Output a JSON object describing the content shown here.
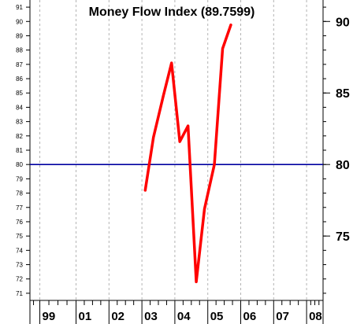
{
  "chart_data": {
    "type": "line",
    "title": "Money Flow Index (89.7599)",
    "ylim": [
      70.5,
      91.5
    ],
    "x_tick_labels": [
      "99",
      "01",
      "02",
      "03",
      "04",
      "05",
      "06",
      "07",
      "08"
    ],
    "x_tick_years": [
      1999.8,
      2000.9,
      2001.9,
      2002.9,
      2003.9,
      2004.9,
      2005.9,
      2006.9,
      2007.9
    ],
    "xlim": [
      1999.5,
      2008.4
    ],
    "left_y_ticks": [
      71,
      72,
      73,
      74,
      75,
      76,
      77,
      78,
      79,
      80,
      81,
      82,
      83,
      84,
      85,
      86,
      87,
      88,
      89,
      90,
      91
    ],
    "right_y_ticks": [
      75,
      80,
      85,
      90
    ],
    "reference_line": {
      "value": 80,
      "color": "#0000a0"
    },
    "series": [
      {
        "color": "#ff0000",
        "x": [
          2003.0,
          2003.25,
          2003.55,
          2003.8,
          2004.05,
          2004.3,
          2004.55,
          2004.8,
          2005.1,
          2005.35,
          2005.6
        ],
        "y": [
          78.2,
          81.9,
          84.8,
          87.1,
          81.6,
          82.7,
          71.8,
          76.9,
          80.0,
          88.1,
          89.76
        ]
      }
    ],
    "grid": "vertical dashed at year ticks"
  }
}
